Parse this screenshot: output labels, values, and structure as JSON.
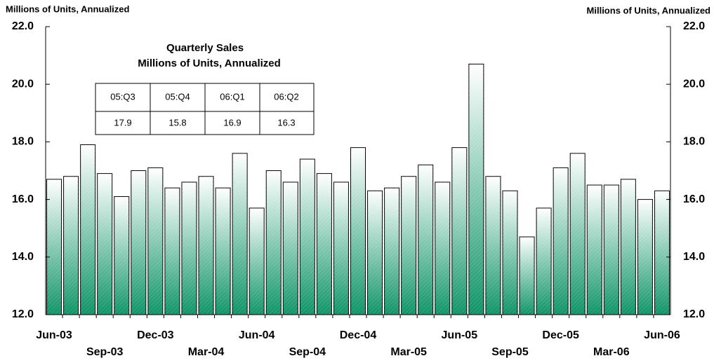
{
  "chart_data": {
    "type": "bar",
    "y_label": "Millions of Units, Annualized",
    "y2_label": "Millions of Units, Annualized",
    "categories": [
      "Jun-03",
      null,
      null,
      "Sep-03",
      null,
      null,
      "Dec-03",
      null,
      null,
      "Mar-04",
      null,
      null,
      "Jun-04",
      null,
      null,
      "Sep-04",
      null,
      null,
      "Dec-04",
      null,
      null,
      "Mar-05",
      null,
      null,
      "Jun-05",
      null,
      null,
      "Sep-05",
      null,
      null,
      "Dec-05",
      null,
      null,
      "Mar-06",
      null,
      null,
      "Jun-06"
    ],
    "values": [
      16.7,
      16.8,
      17.9,
      16.9,
      16.1,
      17.0,
      17.1,
      16.4,
      16.6,
      16.8,
      16.4,
      17.6,
      15.7,
      17.0,
      16.6,
      17.4,
      16.9,
      16.6,
      17.8,
      16.3,
      16.4,
      16.8,
      17.2,
      16.6,
      17.8,
      20.7,
      16.8,
      16.3,
      14.7,
      15.7,
      17.1,
      17.6,
      16.5,
      16.5,
      16.7,
      16.0,
      16.3
    ],
    "color": "#0f9468",
    "ylim": [
      12,
      22
    ],
    "yticks": [
      {
        "value": 12,
        "label": "12.0"
      },
      {
        "value": 14,
        "label": "14.0"
      },
      {
        "value": 16,
        "label": "16.0"
      },
      {
        "value": 18,
        "label": "18.0"
      },
      {
        "value": 20,
        "label": "20.0"
      },
      {
        "value": 22,
        "label": "22.0"
      }
    ],
    "y2lim": [
      12,
      22
    ],
    "y2ticks": [
      {
        "value": 12,
        "label": "12.0"
      },
      {
        "value": 14,
        "label": "14.0"
      },
      {
        "value": 16,
        "label": "16.0"
      },
      {
        "value": 18,
        "label": "18.0"
      },
      {
        "value": 20,
        "label": "20.0"
      },
      {
        "value": 22,
        "label": "22.0"
      }
    ],
    "table": {
      "title": [
        "Quarterly Sales",
        "Millions of Units, Annualized"
      ],
      "columns": [
        "05:Q3",
        "05:Q4",
        "06:Q1",
        "06:Q2"
      ],
      "values": [
        17.9,
        15.8,
        16.9,
        16.3
      ]
    }
  }
}
